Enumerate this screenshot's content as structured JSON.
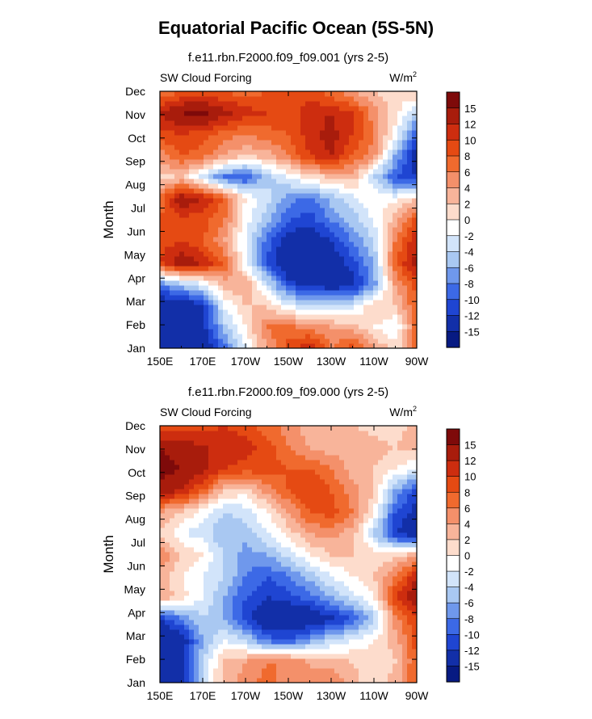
{
  "title": "Equatorial Pacific Ocean (5S-5N)",
  "chart_data": [
    {
      "type": "heatmap",
      "title": "f.e11.rbn.F2000.f09_f09.001 (yrs 2-5)",
      "left_label": "SW Cloud Forcing",
      "right_label": "W/m",
      "right_label_sup": "2",
      "ylabel": "Month",
      "xlabel": "",
      "x_ticks": [
        "150E",
        "170E",
        "170W",
        "150W",
        "130W",
        "110W",
        "90W"
      ],
      "y_ticks": [
        "Jan",
        "Feb",
        "Mar",
        "Apr",
        "May",
        "Jun",
        "Jul",
        "Aug",
        "Sep",
        "Oct",
        "Nov",
        "Dec"
      ],
      "colorbar_labels": [
        "15",
        "12",
        "10",
        "8",
        "6",
        "4",
        "2",
        "0",
        "-2",
        "-4",
        "-6",
        "-8",
        "-10",
        "-12",
        "-15"
      ],
      "colorbar_colors": [
        "#7e0a0a",
        "#a81c0c",
        "#cd2d0f",
        "#e54a13",
        "#f06a2e",
        "#f4906a",
        "#f8b49a",
        "#fddccc",
        "#ffffff",
        "#d2e4fa",
        "#a9c8f2",
        "#6f98ec",
        "#3c69e6",
        "#1f45d2",
        "#122fa8",
        "#071a82"
      ],
      "field_rows": [
        [
          -15,
          -15,
          -15,
          -9,
          -2,
          4,
          9,
          12,
          6,
          9,
          4,
          1,
          7
        ],
        [
          -15,
          -15,
          -13,
          -5,
          0,
          6,
          7,
          5,
          4,
          3,
          0,
          -2,
          7
        ],
        [
          -15,
          -15,
          -12,
          -2,
          2,
          2,
          -2,
          -4,
          -4,
          -3,
          2,
          2,
          8
        ],
        [
          -8,
          -5,
          -2,
          3,
          4,
          -3,
          -11,
          -13,
          -14,
          -13,
          -7,
          4,
          9
        ],
        [
          10,
          14,
          12,
          8,
          -2,
          -10,
          -15,
          -15,
          -14,
          -11,
          -6,
          8,
          13
        ],
        [
          9,
          10,
          8,
          4,
          -2,
          -9,
          -14,
          -14,
          -12,
          -8,
          -4,
          6,
          12
        ],
        [
          8,
          9,
          9,
          6,
          -1,
          -5,
          -10,
          -11,
          -8,
          -5,
          -2,
          3,
          9
        ],
        [
          7,
          14,
          12,
          8,
          0,
          -3,
          -7,
          -9,
          -5,
          -3,
          0,
          -1,
          2
        ],
        [
          1,
          2,
          -3,
          -9,
          -10,
          -5,
          -2,
          1,
          2,
          3,
          -4,
          -10,
          -12
        ],
        [
          5,
          8,
          7,
          4,
          2,
          3,
          6,
          10,
          12,
          8,
          5,
          -6,
          -14
        ],
        [
          9,
          10,
          9,
          7,
          6,
          7,
          8,
          11,
          13,
          10,
          6,
          -1,
          -10
        ],
        [
          12,
          15,
          16,
          13,
          11,
          10,
          9,
          11,
          12,
          10,
          5,
          1,
          -4
        ],
        [
          6,
          8,
          8,
          8,
          7,
          8,
          9,
          9,
          7,
          4,
          2,
          0,
          2
        ]
      ]
    },
    {
      "type": "heatmap",
      "title": "f.e11.rbn.F2000.f09_f09.000 (yrs 2-5)",
      "left_label": "SW Cloud Forcing",
      "right_label": "W/m",
      "right_label_sup": "2",
      "ylabel": "Month",
      "xlabel": "",
      "x_ticks": [
        "150E",
        "170E",
        "170W",
        "150W",
        "130W",
        "110W",
        "90W"
      ],
      "y_ticks": [
        "Jan",
        "Feb",
        "Mar",
        "Apr",
        "May",
        "Jun",
        "Jul",
        "Aug",
        "Sep",
        "Oct",
        "Nov",
        "Dec"
      ],
      "colorbar_labels": [
        "15",
        "12",
        "10",
        "8",
        "6",
        "4",
        "2",
        "0",
        "-2",
        "-4",
        "-6",
        "-8",
        "-10",
        "-12",
        "-15"
      ],
      "colorbar_colors": [
        "#7e0a0a",
        "#a81c0c",
        "#cd2d0f",
        "#e54a13",
        "#f06a2e",
        "#f4906a",
        "#f8b49a",
        "#fddccc",
        "#ffffff",
        "#d2e4fa",
        "#a9c8f2",
        "#6f98ec",
        "#3c69e6",
        "#1f45d2",
        "#122fa8",
        "#071a82"
      ],
      "field_rows": [
        [
          -13,
          -15,
          -3,
          3,
          5,
          7,
          5,
          4,
          6,
          3,
          0,
          3,
          8
        ],
        [
          -15,
          -14,
          -4,
          2,
          4,
          6,
          6,
          4,
          3,
          2,
          1,
          2,
          8
        ],
        [
          -15,
          -14,
          -6,
          -2,
          -4,
          -9,
          -10,
          -7,
          -4,
          -2,
          0,
          3,
          9
        ],
        [
          -12,
          -8,
          -4,
          -6,
          -11,
          -15,
          -15,
          -15,
          -13,
          -10,
          -5,
          5,
          10
        ],
        [
          4,
          1,
          -2,
          -6,
          -10,
          -12,
          -11,
          -9,
          -6,
          -3,
          0,
          10,
          14
        ],
        [
          3,
          0,
          -2,
          -4,
          -8,
          -10,
          -8,
          -5,
          -2,
          0,
          2,
          6,
          12
        ],
        [
          6,
          2,
          0,
          -4,
          -7,
          -6,
          -3,
          0,
          2,
          2,
          1,
          1,
          3
        ],
        [
          2,
          -2,
          -3,
          -6,
          -5,
          -2,
          1,
          4,
          5,
          3,
          -4,
          -12,
          -15
        ],
        [
          4,
          2,
          -1,
          -4,
          -3,
          0,
          4,
          8,
          9,
          6,
          0,
          -10,
          -13
        ],
        [
          14,
          12,
          8,
          2,
          1,
          5,
          8,
          10,
          8,
          5,
          2,
          -6,
          -11
        ],
        [
          16,
          15,
          13,
          10,
          9,
          9,
          8,
          8,
          6,
          3,
          2,
          0,
          -2
        ],
        [
          15,
          14,
          12,
          12,
          11,
          9,
          6,
          4,
          3,
          4,
          3,
          2,
          3
        ],
        [
          8,
          8,
          9,
          10,
          9,
          7,
          5,
          3,
          2,
          2,
          1,
          1,
          3
        ]
      ]
    }
  ]
}
